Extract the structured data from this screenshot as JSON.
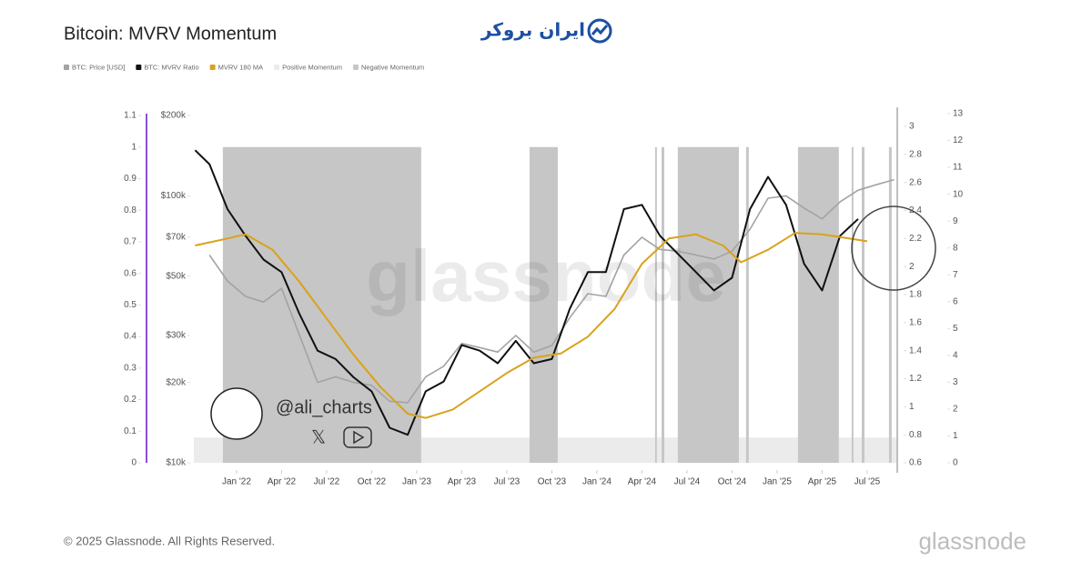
{
  "logo": "ایران بروکر",
  "footer": "© 2025 Glassnode. All Rights Reserved.",
  "brand": "glassnode",
  "chart_data": {
    "type": "line",
    "title": "Bitcoin: MVRV Momentum",
    "watermark": "glassnode",
    "handle": "@ali_charts",
    "xlim": [
      2021.763,
      2025.662
    ],
    "xticks": [
      {
        "value": 2022,
        "label": "Jan '22"
      },
      {
        "value": 2022.25,
        "label": "Apr '22"
      },
      {
        "value": 2022.5,
        "label": "Jul '22"
      },
      {
        "value": 2022.75,
        "label": "Oct '22"
      },
      {
        "value": 2023,
        "label": "Jan '23"
      },
      {
        "value": 2023.25,
        "label": "Apr '23"
      },
      {
        "value": 2023.5,
        "label": "Jul '23"
      },
      {
        "value": 2023.75,
        "label": "Oct '23"
      },
      {
        "value": 2024,
        "label": "Jan '24"
      },
      {
        "value": 2024.25,
        "label": "Apr '24"
      },
      {
        "value": 2024.5,
        "label": "Jul '24"
      },
      {
        "value": 2024.75,
        "label": "Oct '24"
      },
      {
        "value": 2025,
        "label": "Jan '25"
      },
      {
        "value": 2025.25,
        "label": "Apr '25"
      },
      {
        "value": 2025.5,
        "label": "Jul '25"
      }
    ],
    "ylim": [
      0,
      1.1
    ],
    "yticks": [
      0,
      0.1,
      0.2,
      0.3,
      0.4,
      0.5,
      0.6,
      0.7,
      0.8,
      0.9,
      1,
      1.1
    ],
    "y3lim": [
      10000,
      200000
    ],
    "y3log": true,
    "y3ticks": [
      {
        "value": 10000,
        "label": "$10k"
      },
      {
        "value": 20000,
        "label": "$20k"
      },
      {
        "value": 30000,
        "label": "$30k"
      },
      {
        "value": 50000,
        "label": "$50k"
      },
      {
        "value": 70000,
        "label": "$70k"
      },
      {
        "value": 100000,
        "label": "$100k"
      },
      {
        "value": 200000,
        "label": "$200k"
      }
    ],
    "y2lim": [
      0.6,
      3
    ],
    "y2ticks": [
      0.6,
      0.8,
      1,
      1.2,
      1.4,
      1.6,
      1.8,
      2,
      2.2,
      2.4,
      2.6,
      2.8,
      3
    ],
    "y4lim": [
      0,
      13
    ],
    "y4ticks": [
      0,
      1,
      2,
      3,
      4,
      5,
      6,
      7,
      8,
      9,
      10,
      11,
      12,
      13
    ],
    "series": [
      {
        "name": "BTC: Price [USD]",
        "color": "#a3a3a3",
        "axis": "y3",
        "x": [
          2021.85,
          2021.95,
          2022.05,
          2022.15,
          2022.25,
          2022.35,
          2022.45,
          2022.55,
          2022.65,
          2022.75,
          2022.85,
          2022.95,
          2023.05,
          2023.15,
          2023.25,
          2023.35,
          2023.45,
          2023.55,
          2023.65,
          2023.75,
          2023.85,
          2023.95,
          2024.05,
          2024.15,
          2024.25,
          2024.35,
          2024.45,
          2024.55,
          2024.65,
          2024.75,
          2024.85,
          2024.95,
          2025.05,
          2025.15,
          2025.25,
          2025.35,
          2025.45,
          2025.55,
          2025.65
        ],
        "values": [
          60000,
          48000,
          42000,
          40000,
          45000,
          30000,
          20000,
          21000,
          20000,
          19500,
          17000,
          16800,
          21000,
          23000,
          28000,
          27000,
          26000,
          30000,
          26000,
          27500,
          35000,
          43000,
          42000,
          60000,
          70000,
          63000,
          62000,
          60000,
          58000,
          62000,
          75000,
          98000,
          100000,
          90000,
          82000,
          95000,
          105000,
          110000,
          115000
        ]
      },
      {
        "name": "BTC: MVRV Ratio",
        "color": "#111111",
        "axis": "y2",
        "x": [
          2021.77,
          2021.85,
          2021.95,
          2022.05,
          2022.15,
          2022.25,
          2022.35,
          2022.45,
          2022.55,
          2022.65,
          2022.75,
          2022.85,
          2022.95,
          2023.05,
          2023.15,
          2023.25,
          2023.35,
          2023.45,
          2023.55,
          2023.65,
          2023.75,
          2023.85,
          2023.95,
          2024.05,
          2024.15,
          2024.25,
          2024.35,
          2024.45,
          2024.55,
          2024.65,
          2024.75,
          2024.85,
          2024.95,
          2025.05,
          2025.15,
          2025.25,
          2025.35,
          2025.45
        ],
        "values": [
          2.83,
          2.73,
          2.41,
          2.22,
          2.05,
          1.96,
          1.66,
          1.4,
          1.34,
          1.21,
          1.11,
          0.85,
          0.8,
          1.11,
          1.18,
          1.44,
          1.4,
          1.31,
          1.47,
          1.31,
          1.34,
          1.7,
          1.96,
          1.96,
          2.41,
          2.44,
          2.22,
          2.09,
          1.96,
          1.83,
          1.92,
          2.41,
          2.64,
          2.44,
          2.02,
          1.83,
          2.22,
          2.34
        ]
      },
      {
        "name": "MVRV 180 MA",
        "color": "#d9a21b",
        "axis": "y2",
        "x": [
          2021.77,
          2021.95,
          2022.05,
          2022.2,
          2022.35,
          2022.5,
          2022.65,
          2022.8,
          2022.95,
          2023.05,
          2023.2,
          2023.35,
          2023.5,
          2023.65,
          2023.8,
          2023.95,
          2024.1,
          2024.25,
          2024.4,
          2024.55,
          2024.7,
          2024.8,
          2024.95,
          2025.1,
          2025.25,
          2025.4,
          2025.5
        ],
        "values": [
          2.15,
          2.2,
          2.23,
          2.12,
          1.89,
          1.63,
          1.37,
          1.14,
          0.95,
          0.92,
          0.98,
          1.11,
          1.24,
          1.35,
          1.38,
          1.5,
          1.7,
          2.02,
          2.2,
          2.23,
          2.15,
          2.03,
          2.12,
          2.24,
          2.23,
          2.2,
          2.18
        ]
      },
      {
        "name": "Positive Momentum",
        "color": "#ebebeb",
        "axis": "y",
        "type": "band",
        "x_start": [
          2021.763,
          2023.025,
          2023.783,
          2024.333,
          2024.374,
          2024.788,
          2024.843,
          2025.343,
          2025.424,
          2025.485,
          2025.636
        ],
        "x_end": [
          2021.924,
          2023.626,
          2024.323,
          2024.359,
          2024.449,
          2024.828,
          2025.116,
          2025.414,
          2025.47,
          2025.621,
          2025.662
        ],
        "values": [
          0.08,
          0.08,
          0.08,
          0.08,
          0.08,
          0.08,
          0.08,
          0.08,
          0.08,
          0.08,
          0.08
        ]
      },
      {
        "name": "Negative Momentum",
        "color": "#c6c6c6",
        "axis": "y",
        "type": "band",
        "x_start": [
          2021.924,
          2023.626,
          2024.323,
          2024.359,
          2024.449,
          2024.828,
          2025.116,
          2025.414,
          2025.47,
          2025.621
        ],
        "x_end": [
          2023.025,
          2023.783,
          2024.333,
          2024.374,
          2024.788,
          2024.843,
          2025.343,
          2025.424,
          2025.485,
          2025.636
        ],
        "values": [
          1,
          1,
          1,
          1,
          1,
          1,
          1,
          1,
          1,
          1
        ]
      }
    ]
  }
}
